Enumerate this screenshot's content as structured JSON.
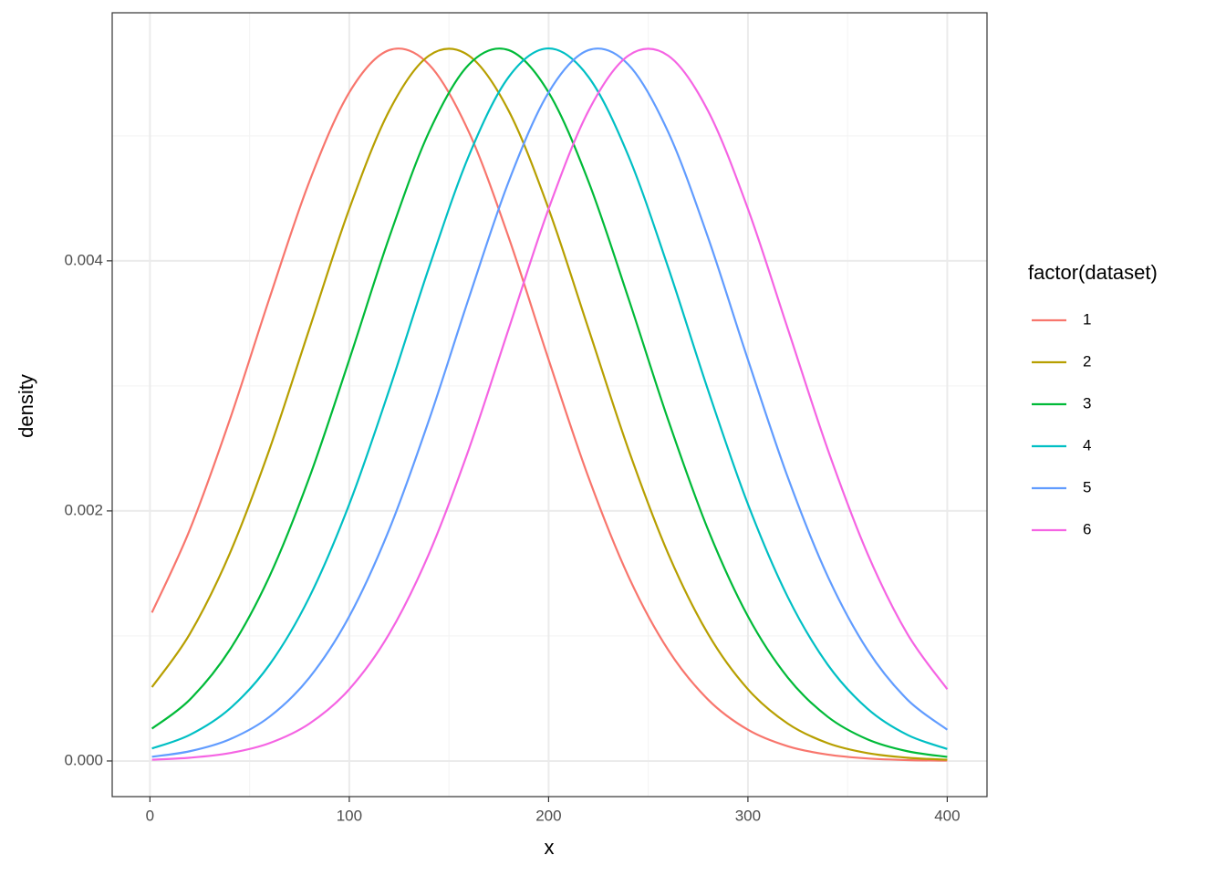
{
  "chart_data": {
    "type": "line",
    "x_label": "x",
    "y_label": "density",
    "legend_title": "factor(dataset)",
    "legend_position": "right",
    "grid": true,
    "x": [
      1,
      20,
      40,
      60,
      80,
      100,
      120,
      140,
      160,
      180,
      200,
      220,
      240,
      260,
      280,
      300,
      320,
      340,
      360,
      380,
      400
    ],
    "series": [
      {
        "name": "1",
        "color": "#F8766D",
        "values": [
          0.001187,
          0.00185,
          0.002727,
          0.003703,
          0.004635,
          0.005347,
          0.005685,
          0.00557,
          0.00503,
          0.004186,
          0.00321,
          0.002269,
          0.001478,
          0.000888,
          0.000491,
          0.00025,
          0.000118,
          5.1e-05,
          2e-05,
          7e-06,
          3e-06
        ]
      },
      {
        "name": "2",
        "color": "#B79F00",
        "values": [
          0.000591,
          0.001016,
          0.001658,
          0.002494,
          0.003457,
          0.004416,
          0.005199,
          0.005641,
          0.005641,
          0.005199,
          0.004416,
          0.003457,
          0.002494,
          0.001658,
          0.001016,
          0.000574,
          0.000299,
          0.000143,
          6.3e-05,
          2.6e-05,
          1e-05
        ]
      },
      {
        "name": "3",
        "color": "#00BA38",
        "values": [
          0.000259,
          0.000491,
          0.000888,
          0.001478,
          0.002269,
          0.00321,
          0.004186,
          0.00503,
          0.00557,
          0.005685,
          0.005347,
          0.004635,
          0.003703,
          0.002727,
          0.00185,
          0.001157,
          0.000667,
          0.000354,
          0.000173,
          7.8e-05,
          3.3e-05
        ]
      },
      {
        "name": "4",
        "color": "#00BFC4",
        "values": [
          0.0001,
          0.000209,
          0.000418,
          0.000771,
          0.001311,
          0.002054,
          0.002966,
          0.003947,
          0.004841,
          0.005471,
          0.005699,
          0.005471,
          0.004841,
          0.003947,
          0.002966,
          0.002054,
          0.001311,
          0.000771,
          0.000418,
          0.000209,
          9.6e-05
        ]
      },
      {
        "name": "5",
        "color": "#619CFF",
        "values": [
          3.4e-05,
          7.8e-05,
          0.000173,
          0.000354,
          0.000667,
          0.001157,
          0.00185,
          0.002727,
          0.003703,
          0.004635,
          0.005347,
          0.005685,
          0.00557,
          0.00503,
          0.004186,
          0.00321,
          0.002269,
          0.001478,
          0.000888,
          0.000491,
          0.00025
        ]
      },
      {
        "name": "6",
        "color": "#F564E3",
        "values": [
          1e-05,
          2.6e-05,
          6.3e-05,
          0.000143,
          0.000299,
          0.000574,
          0.001016,
          0.001658,
          0.002494,
          0.003457,
          0.004416,
          0.005199,
          0.005641,
          0.005641,
          0.005199,
          0.004416,
          0.003457,
          0.002494,
          0.001658,
          0.001016,
          0.000574
        ]
      }
    ],
    "xlim": [
      -18.95,
      419.95
    ],
    "xticks": [
      0,
      100,
      200,
      300,
      400
    ],
    "x_minor_ticks": [
      50,
      150,
      250,
      350
    ],
    "ylim": [
      -0.000285,
      0.005984
    ],
    "yticks": [
      {
        "value": 0,
        "label": "0.000"
      },
      {
        "value": 0.002,
        "label": "0.002"
      },
      {
        "value": 0.004,
        "label": "0.004"
      }
    ],
    "y_minor_ticks": [
      0.001,
      0.003,
      0.005
    ]
  }
}
